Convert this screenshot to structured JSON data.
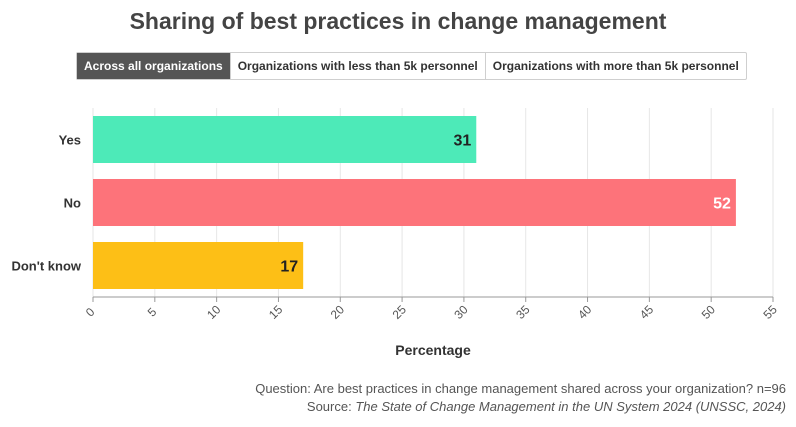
{
  "title": "Sharing of best practices in change management",
  "tabs": [
    {
      "label": "Across all organizations",
      "active": true
    },
    {
      "label": "Organizations with less than 5k personnel",
      "active": false
    },
    {
      "label": "Organizations with more than 5k personnel",
      "active": false
    }
  ],
  "footer": {
    "question": "Question: Are best practices in change management shared across your organization? n=96",
    "source_prefix": "Source: ",
    "source_title": "The State of Change Management in the UN System 2024 (UNSSC, 2024)"
  },
  "chart_data": {
    "type": "bar",
    "orientation": "horizontal",
    "categories": [
      "Yes",
      "No",
      "Don't know"
    ],
    "values": [
      31,
      52,
      17
    ],
    "colors": [
      "#4deab8",
      "#fd737a",
      "#fdbf16"
    ],
    "label_colors": [
      "#222222",
      "#ffffff",
      "#222222"
    ],
    "xlabel": "Percentage",
    "ylabel": "",
    "xlim": [
      0,
      55
    ],
    "xticks": [
      0,
      5,
      10,
      15,
      20,
      25,
      30,
      35,
      40,
      45,
      50,
      55
    ],
    "grid": true,
    "data_labels": true
  }
}
